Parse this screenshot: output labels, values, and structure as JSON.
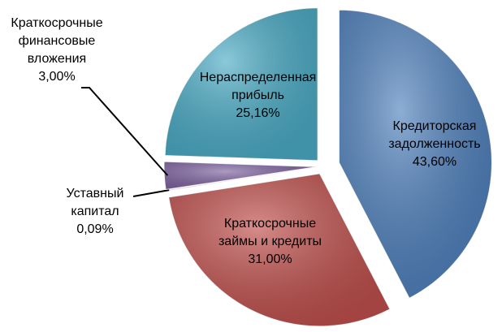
{
  "chart_data": {
    "type": "pie",
    "categories": [
      "Кредиторская задолженность",
      "Краткосрочные займы и кредиты",
      "Уставный капитал",
      "Краткосрочные финансовые вложения",
      "Нераспределенная прибыль"
    ],
    "values": [
      43.6,
      31.0,
      0.09,
      3.0,
      25.16
    ],
    "value_labels": [
      "43,60%",
      "31,00%",
      "0,09%",
      "3,00%",
      "25,16%"
    ],
    "colors": [
      "#4f81bd",
      "#c0504d",
      "#9bbb59",
      "#8064a2",
      "#4bacc6"
    ]
  }
}
